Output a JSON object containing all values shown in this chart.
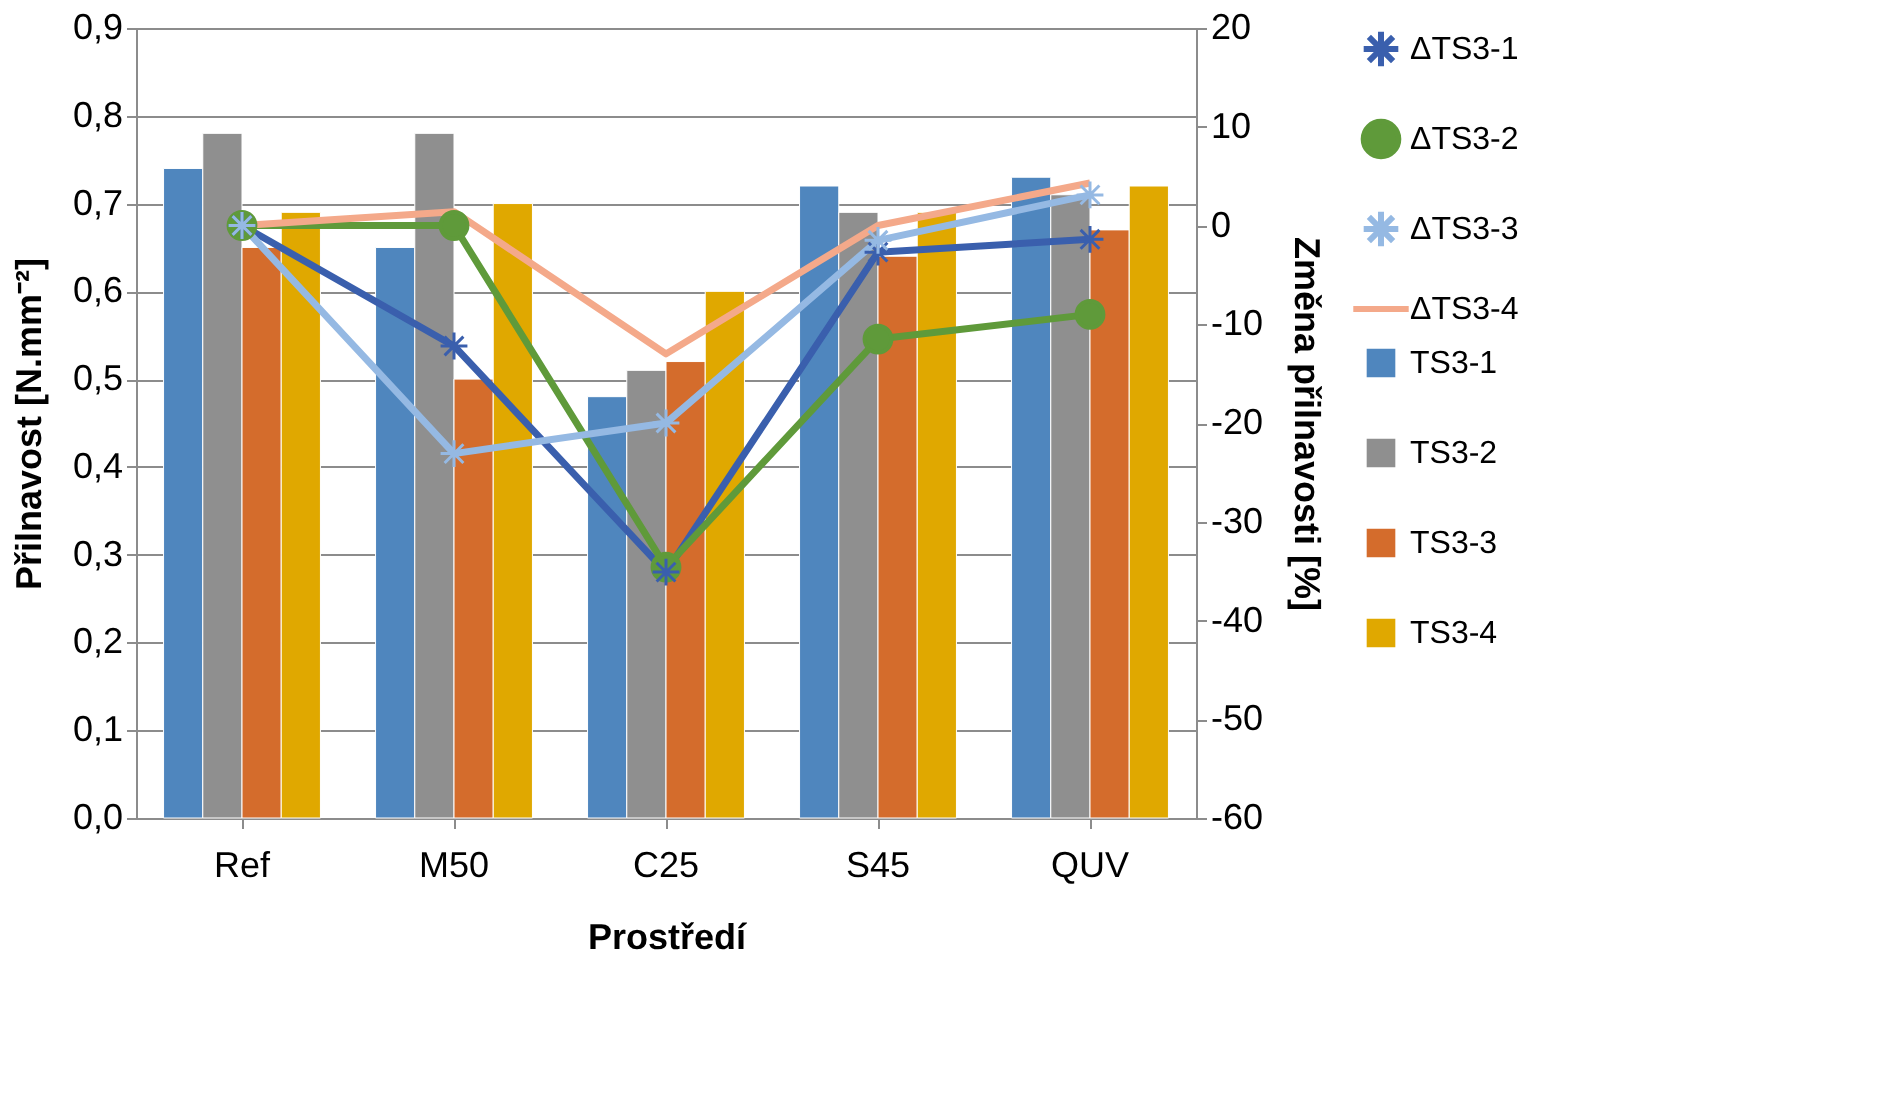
{
  "chart_data": {
    "type": "bar",
    "xlabel": "Prostředí",
    "ylabel": "Přilnavost [N.mm⁻²]",
    "y2label": "Změna přilnavosti [%]",
    "categories": [
      "Ref",
      "M50",
      "C25",
      "S45",
      "QUV"
    ],
    "series": [
      {
        "name": "TS3-1",
        "color": "#4f86be",
        "values": [
          0.74,
          0.65,
          0.48,
          0.72,
          0.73
        ]
      },
      {
        "name": "TS3-2",
        "color": "#8f8f8f",
        "values": [
          0.78,
          0.78,
          0.51,
          0.69,
          0.71
        ]
      },
      {
        "name": "TS3-3",
        "color": "#d46c2c",
        "values": [
          0.65,
          0.5,
          0.52,
          0.64,
          0.67
        ]
      },
      {
        "name": "TS3-4",
        "color": "#e0a800",
        "values": [
          0.69,
          0.7,
          0.6,
          0.69,
          0.72
        ]
      },
      {
        "name": "ΔTS3-1",
        "type": "line",
        "axis": "y2",
        "marker": "cross",
        "color": "#3a5fad",
        "values": [
          0,
          -12.2,
          -35.1,
          -2.7,
          -1.4
        ]
      },
      {
        "name": "ΔTS3-2",
        "type": "line",
        "axis": "y2",
        "marker": "circle",
        "color": "#5f9a3a",
        "values": [
          0,
          0,
          -34.6,
          -11.5,
          -9.0
        ]
      },
      {
        "name": "ΔTS3-3",
        "type": "line",
        "axis": "y2",
        "marker": "cross",
        "color": "#95b9e3",
        "values": [
          0,
          -23.1,
          -20,
          -1.5,
          3.1
        ]
      },
      {
        "name": "ΔTS3-4",
        "type": "line",
        "axis": "y2",
        "marker": "none",
        "color": "#f4a98a",
        "values": [
          0,
          1.4,
          -13,
          0,
          4.3
        ]
      }
    ],
    "ylim": [
      0,
      0.9
    ],
    "yticks": [
      {
        "value": 0,
        "label": "0,0"
      },
      {
        "value": 0.1,
        "label": "0,1"
      },
      {
        "value": 0.2,
        "label": "0,2"
      },
      {
        "value": 0.3,
        "label": "0,3"
      },
      {
        "value": 0.4,
        "label": "0,4"
      },
      {
        "value": 0.5,
        "label": "0,5"
      },
      {
        "value": 0.6,
        "label": "0,6"
      },
      {
        "value": 0.7,
        "label": "0,7"
      },
      {
        "value": 0.8,
        "label": "0,8"
      },
      {
        "value": 0.9,
        "label": "0,9"
      }
    ],
    "y2lim": [
      -60,
      20
    ],
    "y2ticks": [
      -60,
      -50,
      -40,
      -30,
      -20,
      -10,
      0,
      10,
      20
    ],
    "grid": "y",
    "legend": "right",
    "line_style": "solid"
  }
}
